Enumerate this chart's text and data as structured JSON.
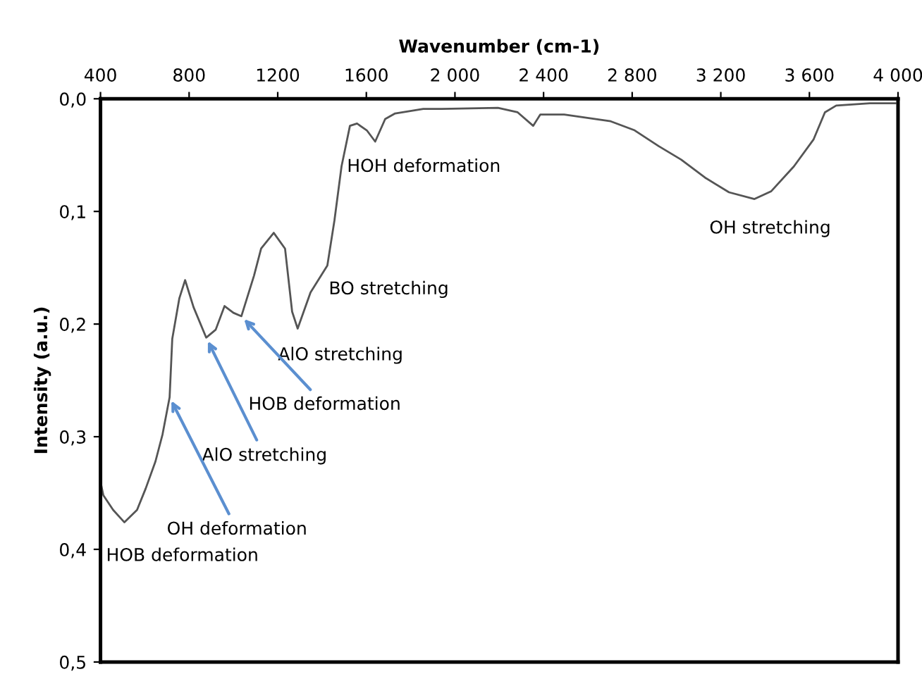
{
  "chart_data": {
    "type": "line",
    "xlabel": "Wavenumber (cm-1)",
    "ylabel": "Intensity (a.u.)",
    "xlim": [
      400,
      4000
    ],
    "ylim": [
      0.5,
      0.0
    ],
    "xticks": [
      400,
      800,
      1200,
      1600,
      {
        "value": 2000,
        "label": "2 000"
      },
      {
        "value": 2400,
        "label": "2 400"
      },
      {
        "value": 2800,
        "label": "2 800"
      },
      {
        "value": 3200,
        "label": "3 200"
      },
      {
        "value": 3600,
        "label": "3 600"
      },
      {
        "value": 4000,
        "label": "4 000"
      }
    ],
    "yticks": [
      {
        "value": 0.0,
        "label": "0,0"
      },
      {
        "value": 0.1,
        "label": "0,1"
      },
      {
        "value": 0.2,
        "label": "0,2"
      },
      {
        "value": 0.3,
        "label": "0,3"
      },
      {
        "value": 0.4,
        "label": "0,4"
      },
      {
        "value": 0.5,
        "label": "0,5"
      }
    ],
    "grid": false,
    "legend": false,
    "marker": "none",
    "line_style": "solid",
    "series": [
      {
        "color": "#555555",
        "x": [
          400,
          413,
          457,
          508,
          565,
          604,
          648,
          680,
          712,
          724,
          756,
          782,
          820,
          877,
          920,
          960,
          1000,
          1036,
          1093,
          1125,
          1182,
          1233,
          1265,
          1290,
          1348,
          1424,
          1456,
          1488,
          1526,
          1558,
          1602,
          1640,
          1685,
          1730,
          1857,
          1940,
          2194,
          2283,
          2353,
          2385,
          2493,
          2703,
          2811,
          2919,
          3021,
          3129,
          3237,
          3352,
          3428,
          3530,
          3619,
          3670,
          3721,
          3873,
          3988
        ],
        "values": [
          0.34,
          0.352,
          0.365,
          0.376,
          0.365,
          0.346,
          0.322,
          0.298,
          0.265,
          0.213,
          0.177,
          0.161,
          0.185,
          0.212,
          0.205,
          0.184,
          0.19,
          0.193,
          0.157,
          0.133,
          0.119,
          0.133,
          0.189,
          0.204,
          0.172,
          0.148,
          0.108,
          0.06,
          0.024,
          0.022,
          0.028,
          0.038,
          0.018,
          0.013,
          0.009,
          0.009,
          0.008,
          0.012,
          0.024,
          0.014,
          0.014,
          0.02,
          0.028,
          0.042,
          0.054,
          0.07,
          0.083,
          0.089,
          0.082,
          0.06,
          0.036,
          0.012,
          0.006,
          0.004,
          0.004
        ]
      }
    ],
    "annotations": [
      {
        "text": "HOH deformation",
        "x": 1640,
        "y": 0.038
      },
      {
        "text": "OH stretching",
        "x": 3352,
        "y": 0.089
      },
      {
        "text": "BO stretching",
        "x": 1424,
        "y": 0.148
      },
      {
        "text": "AlO stretching",
        "x": 1290,
        "y": 0.204
      },
      {
        "text": "HOB deformation",
        "x": 1036,
        "y": 0.193
      },
      {
        "text": "AlO stretching",
        "x": 877,
        "y": 0.212
      },
      {
        "text": "OH deformation",
        "x": 712,
        "y": 0.265
      },
      {
        "text": "HOB deformation",
        "x": 508,
        "y": 0.376
      }
    ]
  }
}
